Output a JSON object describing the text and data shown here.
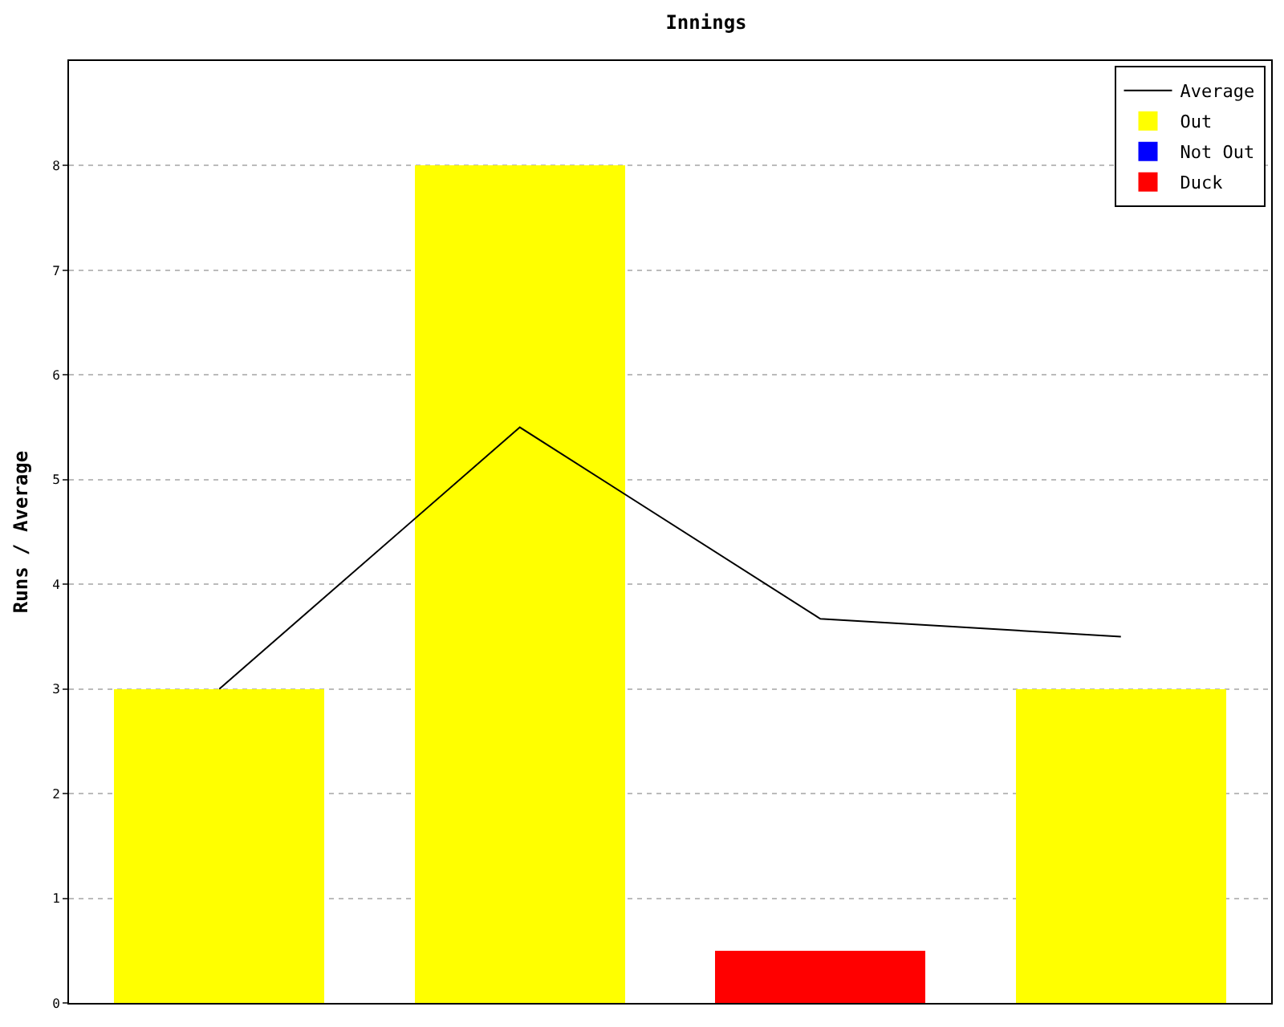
{
  "chart_data": {
    "type": "bar",
    "title": "Innings",
    "ylabel": "Runs / Average",
    "categories": [
      null,
      null,
      null,
      null
    ],
    "series": [
      {
        "name": "Average",
        "type": "line",
        "color": "#000000",
        "values": [
          3,
          5.5,
          3.67,
          3.5
        ]
      },
      {
        "name": "Out",
        "color": "#ffff00",
        "values": [
          3,
          8,
          null,
          3
        ]
      },
      {
        "name": "Not Out",
        "color": "#0000ff",
        "values": [
          null,
          null,
          null,
          null
        ]
      },
      {
        "name": "Duck",
        "color": "#ff0000",
        "values": [
          null,
          null,
          0.5,
          null
        ]
      }
    ],
    "stacked": true,
    "ylim": [
      0,
      9
    ],
    "yticks": [
      0,
      1,
      2,
      3,
      4,
      5,
      6,
      7,
      8
    ],
    "grid": "y",
    "legend": "top right",
    "marker": "none"
  }
}
